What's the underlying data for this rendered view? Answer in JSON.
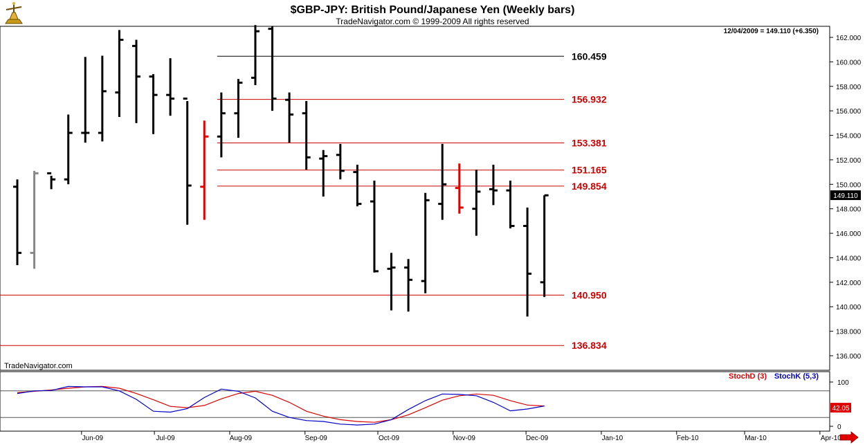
{
  "header": {
    "title": "$GBP-JPY:  British Pound/Japanese Yen  (Weekly bars)",
    "subtitle": "TradeNavigator.com © 1999-2009 All rights reserved",
    "last_info": "12/04/2009 = 149.110 (+6.350)",
    "watermark": "TradeNavigator.com"
  },
  "colors": {
    "up": "#000000",
    "down": "#e00000",
    "neutral": "#888888",
    "level_red": "#cc0000",
    "stochD": "#dd0000",
    "stochK": "#0000cc"
  },
  "chart_data": [
    {
      "type": "ohlc",
      "title": "$GBP-JPY:  British Pound/Japanese Yen  (Weekly bars)",
      "ylim": [
        135,
        163
      ],
      "y_ticks": [
        "136.000",
        "138.000",
        "140.000",
        "142.000",
        "144.000",
        "146.000",
        "148.000",
        "150.000",
        "152.000",
        "154.000",
        "156.000",
        "158.000",
        "160.000",
        "162.000"
      ],
      "x_ticks": [
        "Jun-09",
        "Jul-09",
        "Aug-09",
        "Sep-09",
        "Oct-09",
        "Nov-09",
        "Dec-09",
        "Jan-10",
        "Feb-10",
        "Mar-10",
        "Apr-10"
      ],
      "last_price": "149.110",
      "bars": [
        {
          "date": "2009-05-01",
          "o": 149.8,
          "h": 150.4,
          "l": 143.4,
          "c": 144.4,
          "color": "up"
        },
        {
          "date": "2009-05-08",
          "o": 144.4,
          "h": 151.1,
          "l": 143.1,
          "c": 150.9,
          "color": "neutral"
        },
        {
          "date": "2009-05-15",
          "o": 150.9,
          "h": 150.7,
          "l": 149.6,
          "c": 150.4,
          "color": "up"
        },
        {
          "date": "2009-05-22",
          "o": 150.4,
          "h": 155.7,
          "l": 150.0,
          "c": 154.2,
          "color": "up"
        },
        {
          "date": "2009-05-29",
          "o": 154.2,
          "h": 160.4,
          "l": 153.4,
          "c": 154.2,
          "color": "up"
        },
        {
          "date": "2009-06-05",
          "o": 154.2,
          "h": 160.5,
          "l": 153.5,
          "c": 157.6,
          "color": "up"
        },
        {
          "date": "2009-06-12",
          "o": 157.5,
          "h": 162.6,
          "l": 155.5,
          "c": 161.8,
          "color": "up"
        },
        {
          "date": "2009-06-19",
          "o": 161.3,
          "h": 161.8,
          "l": 155.0,
          "c": 158.8,
          "color": "up"
        },
        {
          "date": "2009-06-26",
          "o": 158.8,
          "h": 159.0,
          "l": 154.1,
          "c": 157.3,
          "color": "up"
        },
        {
          "date": "2009-07-03",
          "o": 157.3,
          "h": 160.3,
          "l": 155.6,
          "c": 157.0,
          "color": "up"
        },
        {
          "date": "2009-07-10",
          "o": 157.0,
          "h": 156.8,
          "l": 146.7,
          "c": 149.9,
          "color": "up"
        },
        {
          "date": "2009-07-17",
          "o": 149.8,
          "h": 155.2,
          "l": 147.1,
          "c": 153.9,
          "color": "down"
        },
        {
          "date": "2009-07-24",
          "o": 153.9,
          "h": 157.5,
          "l": 152.2,
          "c": 155.8,
          "color": "up"
        },
        {
          "date": "2009-07-31",
          "o": 155.8,
          "h": 158.6,
          "l": 153.8,
          "c": 158.3,
          "color": "up"
        },
        {
          "date": "2009-08-07",
          "o": 158.7,
          "h": 163.0,
          "l": 158.1,
          "c": 162.5,
          "color": "up"
        },
        {
          "date": "2009-08-14",
          "o": 162.7,
          "h": 162.9,
          "l": 156.0,
          "c": 157.0,
          "color": "up"
        },
        {
          "date": "2009-08-21",
          "o": 156.9,
          "h": 157.5,
          "l": 153.4,
          "c": 155.7,
          "color": "up"
        },
        {
          "date": "2009-08-28",
          "o": 155.8,
          "h": 156.8,
          "l": 151.2,
          "c": 152.2,
          "color": "up"
        },
        {
          "date": "2009-09-04",
          "o": 152.1,
          "h": 152.8,
          "l": 149.0,
          "c": 152.3,
          "color": "up"
        },
        {
          "date": "2009-09-11",
          "o": 152.4,
          "h": 153.3,
          "l": 150.4,
          "c": 151.1,
          "color": "up"
        },
        {
          "date": "2009-09-18",
          "o": 151.0,
          "h": 151.6,
          "l": 148.2,
          "c": 148.4,
          "color": "up"
        },
        {
          "date": "2009-09-25",
          "o": 148.6,
          "h": 150.3,
          "l": 142.8,
          "c": 142.9,
          "color": "up"
        },
        {
          "date": "2009-10-02",
          "o": 143.1,
          "h": 144.4,
          "l": 139.7,
          "c": 143.2,
          "color": "up"
        },
        {
          "date": "2009-10-09",
          "o": 143.2,
          "h": 143.9,
          "l": 139.6,
          "c": 142.2,
          "color": "up"
        },
        {
          "date": "2009-10-16",
          "o": 142.1,
          "h": 149.3,
          "l": 141.1,
          "c": 148.7,
          "color": "up"
        },
        {
          "date": "2009-10-23",
          "o": 148.4,
          "h": 153.3,
          "l": 147.1,
          "c": 150.0,
          "color": "up"
        },
        {
          "date": "2009-10-30",
          "o": 149.7,
          "h": 151.7,
          "l": 147.6,
          "c": 148.1,
          "color": "down"
        },
        {
          "date": "2009-11-06",
          "o": 148.0,
          "h": 151.2,
          "l": 145.8,
          "c": 149.4,
          "color": "up"
        },
        {
          "date": "2009-11-13",
          "o": 149.6,
          "h": 151.6,
          "l": 148.3,
          "c": 149.5,
          "color": "up"
        },
        {
          "date": "2009-11-20",
          "o": 149.5,
          "h": 150.3,
          "l": 146.4,
          "c": 146.6,
          "color": "up"
        },
        {
          "date": "2009-11-27",
          "o": 146.6,
          "h": 148.1,
          "l": 139.2,
          "c": 142.7,
          "color": "up"
        },
        {
          "date": "2009-12-04",
          "o": 142.0,
          "h": 149.1,
          "l": 140.8,
          "c": 149.1,
          "color": "up"
        }
      ],
      "levels": [
        {
          "value": 160.459,
          "label": "160.459",
          "color": "#000000"
        },
        {
          "value": 156.932,
          "label": "156.932",
          "color": "#cc0000"
        },
        {
          "value": 153.381,
          "label": "153.381",
          "color": "#cc0000"
        },
        {
          "value": 151.165,
          "label": "151.165",
          "color": "#cc0000"
        },
        {
          "value": 149.854,
          "label": "149.854",
          "color": "#cc0000"
        },
        {
          "value": 140.95,
          "label": "140.950",
          "color": "#cc0000"
        },
        {
          "value": 136.834,
          "label": "136.834",
          "color": "#cc0000"
        }
      ]
    },
    {
      "type": "line",
      "ylim": [
        0,
        110
      ],
      "y_ticks": [
        "0",
        "100"
      ],
      "reference_lines": [
        80,
        20
      ],
      "last_value": "42.05",
      "series": [
        {
          "name": "StochD (3)",
          "color": "#dd0000",
          "values": [
            76,
            79,
            82,
            86,
            89,
            90,
            86,
            74,
            60,
            45,
            42,
            47,
            62,
            74,
            79,
            70,
            54,
            34,
            23,
            15,
            11,
            9,
            15,
            26,
            42,
            59,
            69,
            73,
            70,
            58,
            48,
            46
          ]
        },
        {
          "name": "StochK (5,3)",
          "color": "#0000cc",
          "values": [
            74,
            80,
            81,
            90,
            89,
            89,
            80,
            61,
            34,
            32,
            40,
            65,
            84,
            79,
            64,
            34,
            20,
            13,
            11,
            5,
            3,
            5,
            15,
            38,
            58,
            73,
            72,
            69,
            54,
            35,
            39,
            46
          ]
        }
      ]
    }
  ]
}
